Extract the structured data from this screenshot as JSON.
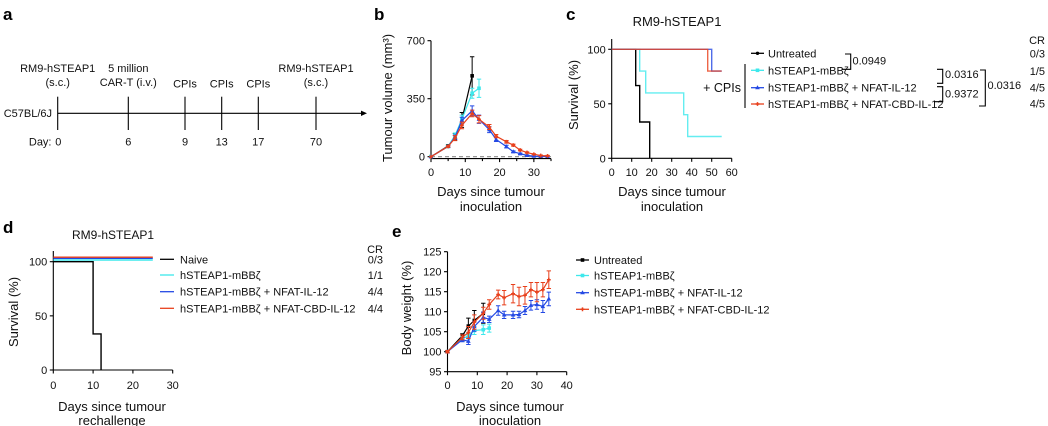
{
  "panel_labels": {
    "a": "a",
    "b": "b",
    "c": "c",
    "d": "d",
    "e": "e"
  },
  "timeline": {
    "strain": "C57BL/6J",
    "day_prefix": "Day:",
    "events": [
      {
        "day": "0",
        "label_lines": [
          "RM9-hSTEAP1",
          "(s.c.)"
        ]
      },
      {
        "day": "6",
        "label_lines": [
          "5 million",
          "CAR-T (i.v.)"
        ]
      },
      {
        "day": "9",
        "label_lines": [
          "CPIs"
        ]
      },
      {
        "day": "13",
        "label_lines": [
          "CPIs"
        ]
      },
      {
        "day": "17",
        "label_lines": [
          "CPIs"
        ]
      },
      {
        "day": "70",
        "label_lines": [
          "RM9-hSTEAP1",
          "(s.c.)"
        ]
      }
    ]
  },
  "chart_data": [
    {
      "panel": "b",
      "type": "line",
      "title": "",
      "xlabel": [
        "Days since tumour",
        "inoculation"
      ],
      "ylabel": "Tumour volume (mm³)",
      "xlim": [
        0,
        35
      ],
      "ylim": [
        0,
        700
      ],
      "xticks": [
        0,
        10,
        20,
        30
      ],
      "xticks_minor": [
        5,
        15,
        25,
        35
      ],
      "yticks": [
        0,
        350,
        700
      ],
      "grid": false,
      "reference_line": {
        "y": 0,
        "style": "dashed",
        "color": "#8a8a8a"
      },
      "series": [
        {
          "name": "Untreated",
          "color": "#000000",
          "marker": "square",
          "x": [
            0,
            5,
            7,
            9,
            12
          ],
          "y": [
            0,
            65,
            120,
            222,
            488
          ],
          "err": [
            0,
            8,
            20,
            45,
            115
          ]
        },
        {
          "name": "hSTEAP1-mBBζ",
          "color": "#3de8ec",
          "marker": "square",
          "x": [
            0,
            5,
            7,
            9,
            12,
            14
          ],
          "y": [
            0,
            62,
            128,
            226,
            383,
            413
          ],
          "err": [
            0,
            8,
            15,
            25,
            30,
            55
          ]
        },
        {
          "name": "hSTEAP1-mBBζ + NFAT-IL-12",
          "color": "#2449e4",
          "marker": "triangle",
          "x": [
            0,
            5,
            7,
            9,
            12,
            14,
            17,
            19,
            22,
            24,
            26,
            28,
            30,
            32,
            34
          ],
          "y": [
            0,
            62,
            118,
            218,
            277,
            226,
            163,
            104,
            61,
            30,
            18,
            8,
            3,
            2,
            2
          ],
          "err": [
            0,
            5,
            12,
            20,
            30,
            25,
            18,
            12,
            8,
            5,
            4,
            3,
            2,
            2,
            2
          ]
        },
        {
          "name": "hSTEAP1-mBBζ + NFAT-CBD-IL-12",
          "color": "#e8401c",
          "marker": "star",
          "x": [
            0,
            5,
            7,
            9,
            12,
            14,
            17,
            19,
            22,
            24,
            26,
            28,
            30,
            32,
            34
          ],
          "y": [
            0,
            62,
            112,
            189,
            261,
            226,
            179,
            124,
            90,
            70,
            40,
            25,
            15,
            7,
            5
          ],
          "err": [
            0,
            5,
            15,
            20,
            20,
            22,
            15,
            10,
            8,
            6,
            5,
            4,
            3,
            3,
            3
          ]
        }
      ]
    },
    {
      "panel": "c",
      "type": "step",
      "title": "RM9-hSTEAP1",
      "xlabel": [
        "Days since tumour",
        "inoculation"
      ],
      "ylabel": "Survival (%)",
      "xlim": [
        0,
        60
      ],
      "ylim": [
        0,
        100
      ],
      "xticks": [
        0,
        10,
        20,
        30,
        40,
        50,
        60
      ],
      "yticks": [
        0,
        50,
        100
      ],
      "grid": false,
      "legend_position": "right",
      "series": [
        {
          "name": "Untreated",
          "color": "#000000",
          "marker": "dot",
          "steps": [
            [
              0,
              100
            ],
            [
              12,
              66.7
            ],
            [
              14,
              33.3
            ],
            [
              19,
              0
            ]
          ],
          "end": 19
        },
        {
          "name": "hSTEAP1-mBBζ",
          "color": "#3de8ec",
          "marker": "square",
          "steps": [
            [
              0,
              100
            ],
            [
              14,
              80
            ],
            [
              17,
              60
            ],
            [
              36,
              40
            ],
            [
              38,
              20
            ]
          ],
          "end": 55
        },
        {
          "name": "hSTEAP1-mBBζ + NFAT-IL-12",
          "color": "#2449e4",
          "marker": "triangle",
          "steps": [
            [
              0,
              100
            ],
            [
              50,
              80
            ]
          ],
          "end": 55
        },
        {
          "name": "hSTEAP1-mBBζ + NFAT-CBD-IL-12",
          "color": "#e8401c",
          "marker": "star",
          "steps": [
            [
              0,
              100
            ],
            [
              48,
              80
            ]
          ],
          "end": 55
        }
      ],
      "group_annotation": "+ CPIs",
      "cr_header": "CR",
      "cr": [
        "0/3",
        "1/5",
        "4/5",
        "4/5"
      ],
      "comparisons": [
        {
          "between": [
            "Untreated",
            "hSTEAP1-mBBζ"
          ],
          "p": "0.0949"
        },
        {
          "between": [
            "hSTEAP1-mBBζ",
            "hSTEAP1-mBBζ + NFAT-IL-12"
          ],
          "p": "0.0316"
        },
        {
          "between": [
            "hSTEAP1-mBBζ + NFAT-IL-12",
            "hSTEAP1-mBBζ + NFAT-CBD-IL-12"
          ],
          "p": "0.9372"
        },
        {
          "between": [
            "hSTEAP1-mBBζ",
            "hSTEAP1-mBBζ + NFAT-CBD-IL-12"
          ],
          "p": "0.0316"
        }
      ]
    },
    {
      "panel": "d",
      "type": "step",
      "title": "RM9-hSTEAP1",
      "xlabel": [
        "Days since tumour",
        "rechallenge"
      ],
      "ylabel": "Survival (%)",
      "xlim": [
        0,
        30
      ],
      "ylim": [
        0,
        100
      ],
      "xticks": [
        0,
        10,
        20,
        30
      ],
      "yticks": [
        0,
        50,
        100
      ],
      "grid": false,
      "legend_position": "right",
      "series": [
        {
          "name": "Naive",
          "color": "#000000",
          "marker": "none",
          "steps": [
            [
              0,
              100
            ],
            [
              10,
              33.3
            ],
            [
              12,
              0
            ]
          ],
          "end": 12
        },
        {
          "name": "hSTEAP1-mBBζ",
          "color": "#3de8ec",
          "marker": "none",
          "steps": [
            [
              0,
              100
            ]
          ],
          "end": 25
        },
        {
          "name": "hSTEAP1-mBBζ + NFAT-IL-12",
          "color": "#2449e4",
          "marker": "none",
          "steps": [
            [
              0,
              100
            ]
          ],
          "end": 25
        },
        {
          "name": "hSTEAP1-mBBζ + NFAT-CBD-IL-12",
          "color": "#e8401c",
          "marker": "none",
          "steps": [
            [
              0,
              100
            ]
          ],
          "end": 25
        }
      ],
      "cr_header": "CR",
      "cr": [
        "0/3",
        "1/1",
        "4/4",
        "4/4"
      ]
    },
    {
      "panel": "e",
      "type": "line",
      "title": "",
      "xlabel": [
        "Days since tumour",
        "inoculation"
      ],
      "ylabel": "Body weight (%)",
      "xlim": [
        0,
        40
      ],
      "ylim": [
        95,
        125
      ],
      "xticks": [
        0,
        10,
        20,
        30,
        40
      ],
      "yticks": [
        95,
        100,
        105,
        110,
        115,
        120,
        125
      ],
      "grid": false,
      "legend_position": "right",
      "series": [
        {
          "name": "Untreated",
          "color": "#000000",
          "marker": "square",
          "x": [
            0,
            5,
            7,
            9,
            12
          ],
          "y": [
            100,
            104,
            106.4,
            107.8,
            109.6
          ],
          "err": [
            0.3,
            0.5,
            2,
            2.5,
            2.5
          ]
        },
        {
          "name": "hSTEAP1-mBBζ",
          "color": "#3de8ec",
          "marker": "square",
          "x": [
            0,
            5,
            7,
            9,
            12,
            14
          ],
          "y": [
            100,
            103.2,
            104,
            105.3,
            105.5,
            105.9
          ],
          "err": [
            0.3,
            0.6,
            0.8,
            1,
            1.2,
            1
          ]
        },
        {
          "name": "hSTEAP1-mBBζ + NFAT-IL-12",
          "color": "#2449e4",
          "marker": "triangle",
          "x": [
            0,
            5,
            7,
            9,
            12,
            14,
            17,
            19,
            22,
            24,
            26,
            28,
            30,
            32,
            34
          ],
          "y": [
            100,
            103,
            102.6,
            106.3,
            108.6,
            108.1,
            110.3,
            109.2,
            109.2,
            109.3,
            110.3,
            111.6,
            111.8,
            111.3,
            113.2
          ],
          "err": [
            0.3,
            0.5,
            0.8,
            1.2,
            1.3,
            0.8,
            1.2,
            0.9,
            0.9,
            0.8,
            1,
            1.2,
            1.2,
            1.5,
            1.7
          ]
        },
        {
          "name": "hSTEAP1-mBBζ + NFAT-CBD-IL-12",
          "color": "#e8401c",
          "marker": "star",
          "x": [
            0,
            5,
            7,
            9,
            12,
            14,
            17,
            19,
            22,
            24,
            26,
            28,
            30,
            32,
            34
          ],
          "y": [
            100,
            103.6,
            104.8,
            107.4,
            109.6,
            111.8,
            114.3,
            113.5,
            114.5,
            113.8,
            114.1,
            115.5,
            114.9,
            115.5,
            118
          ],
          "err": [
            0.3,
            0.6,
            1.5,
            1.8,
            1.5,
            1.2,
            1.1,
            1.8,
            2.3,
            2.3,
            2.2,
            1.8,
            2.4,
            1.8,
            2.2
          ]
        }
      ]
    }
  ]
}
